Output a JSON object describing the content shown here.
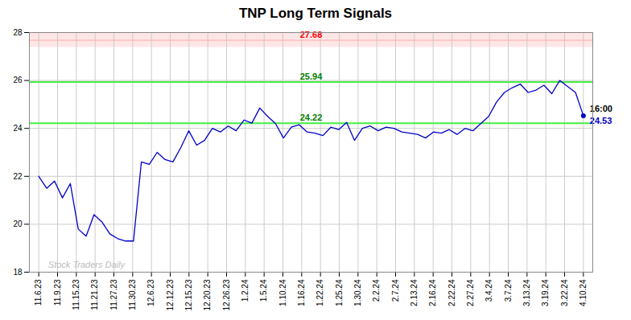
{
  "chart_data": {
    "type": "line",
    "title": "TNP Long Term Signals",
    "x": [
      0,
      0.42029,
      0.84058,
      1.26087,
      1.681159,
      2.101449,
      2.521739,
      2.942029,
      3.362319,
      3.782609,
      4.202899,
      4.623188,
      5.043478,
      5.463768,
      5.884058,
      6.304348,
      6.724638,
      7.144928,
      7.565217,
      7.985507,
      8.405797,
      8.826087,
      9.246377,
      9.666667,
      10.086957,
      10.507246,
      10.927536,
      11.347826,
      11.768116,
      12.188406,
      12.608696,
      13.028986,
      13.449275,
      13.869565,
      14.289855,
      14.710145,
      15.130435,
      15.550725,
      15.971014,
      16.391304,
      16.811594,
      17.231884,
      17.652174,
      18.072464,
      18.492754,
      18.913043,
      19.333333,
      19.753623,
      20.173913,
      20.594203,
      21.014493,
      21.434783,
      21.855072,
      22.275362,
      22.695652,
      23.115942,
      23.536232,
      23.956522,
      24.376812,
      24.797101,
      25.217391,
      25.637681,
      26.057971,
      26.478261,
      26.898551,
      27.318841,
      27.73913,
      28.15942,
      28.57971,
      29
    ],
    "values": [
      22.0,
      21.5,
      21.8,
      21.1,
      21.7,
      19.8,
      19.5,
      20.4,
      20.1,
      19.6,
      19.4,
      19.3,
      19.3,
      22.6,
      22.5,
      23.0,
      22.7,
      22.6,
      23.2,
      23.9,
      23.3,
      23.5,
      24.0,
      23.85,
      24.1,
      23.9,
      24.35,
      24.22,
      24.85,
      24.5,
      24.2,
      23.6,
      24.05,
      24.15,
      23.85,
      23.8,
      23.7,
      24.05,
      23.95,
      24.25,
      23.5,
      24.0,
      24.1,
      23.9,
      24.05,
      24.0,
      23.85,
      23.8,
      23.75,
      23.6,
      23.85,
      23.8,
      23.95,
      23.75,
      24.0,
      23.9,
      24.2,
      24.5,
      25.1,
      25.5,
      25.7,
      25.85,
      25.5,
      25.6,
      25.8,
      25.45,
      26.0,
      25.75,
      25.5,
      24.53
    ],
    "color": "#0000cc",
    "xlim": [
      -0.5,
      29.5
    ],
    "xticks": [
      {
        "value": 0,
        "label": "11.6.23"
      },
      {
        "value": 1,
        "label": "11.9.23"
      },
      {
        "value": 2,
        "label": "11.15.23"
      },
      {
        "value": 3,
        "label": "11.21.23"
      },
      {
        "value": 4,
        "label": "11.27.23"
      },
      {
        "value": 5,
        "label": "11.30.23"
      },
      {
        "value": 6,
        "label": "12.6.23"
      },
      {
        "value": 7,
        "label": "12.12.23"
      },
      {
        "value": 8,
        "label": "12.15.23"
      },
      {
        "value": 9,
        "label": "12.20.23"
      },
      {
        "value": 10,
        "label": "12.26.23"
      },
      {
        "value": 11,
        "label": "1.2.24"
      },
      {
        "value": 12,
        "label": "1.5.24"
      },
      {
        "value": 13,
        "label": "1.10.24"
      },
      {
        "value": 14,
        "label": "1.16.24"
      },
      {
        "value": 15,
        "label": "1.22.24"
      },
      {
        "value": 16,
        "label": "1.25.24"
      },
      {
        "value": 17,
        "label": "1.30.24"
      },
      {
        "value": 18,
        "label": "2.2.24"
      },
      {
        "value": 19,
        "label": "2.7.24"
      },
      {
        "value": 20,
        "label": "2.13.24"
      },
      {
        "value": 21,
        "label": "2.16.24"
      },
      {
        "value": 22,
        "label": "2.22.24"
      },
      {
        "value": 23,
        "label": "2.27.24"
      },
      {
        "value": 24,
        "label": "3.4.24"
      },
      {
        "value": 25,
        "label": "3.7.24"
      },
      {
        "value": 26,
        "label": "3.13.24"
      },
      {
        "value": 27,
        "label": "3.19.24"
      },
      {
        "value": 28,
        "label": "3.22.24"
      },
      {
        "value": 29,
        "label": "4.10.24"
      }
    ],
    "ylim": [
      18,
      28
    ],
    "yticks": [
      18,
      20,
      22,
      24,
      26,
      28
    ],
    "grid": true,
    "hlines": [
      {
        "y": 27.68,
        "label": "27.68",
        "color": "#ffaaaa",
        "label_color": "red",
        "band": [
          27.38,
          27.98
        ],
        "band_color": "#ffe6e6"
      },
      {
        "y": 25.94,
        "label": "25.94",
        "color": "#44ee44",
        "label_color": "green"
      },
      {
        "y": 24.22,
        "label": "24.22",
        "color": "#44ee44",
        "label_color": "green"
      }
    ],
    "last_point": {
      "x": 29,
      "y": 24.53,
      "time": "16:00",
      "price": 24.53,
      "color": "#0000cc"
    },
    "watermark": {
      "text": "Stock Traders Daily",
      "x": 0.5,
      "y": 18.2,
      "color": "#bbbbbb"
    }
  }
}
